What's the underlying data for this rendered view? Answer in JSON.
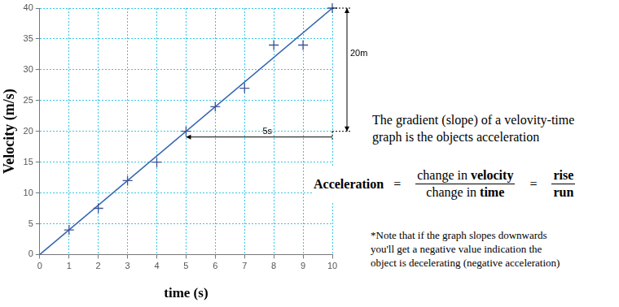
{
  "chart_data": {
    "type": "scatter",
    "x_label": "time (s)",
    "y_label": "Velocity (m/s)",
    "series": [
      {
        "type": "scatter",
        "marker": "cross",
        "color": "#3b5596",
        "x": [
          1,
          2,
          3,
          4,
          5,
          6,
          7,
          8,
          9,
          10
        ],
        "values": [
          4,
          7.5,
          12,
          15,
          20,
          24,
          27,
          34,
          34,
          40
        ]
      },
      {
        "type": "line",
        "color": "#3565b0",
        "x": [
          0,
          10
        ],
        "values": [
          0,
          40
        ]
      }
    ],
    "xlim": [
      0,
      10
    ],
    "xticks": [
      0,
      1,
      2,
      3,
      4,
      5,
      6,
      7,
      8,
      9,
      10
    ],
    "ylim": [
      0,
      40
    ],
    "yticks": [
      0,
      5,
      10,
      15,
      20,
      25,
      30,
      35,
      40
    ],
    "grid": true,
    "annotations": [
      {
        "text": "20m",
        "from": [
          10,
          20
        ],
        "to": [
          10,
          40
        ]
      },
      {
        "text": "5s",
        "from": [
          5,
          20
        ],
        "to": [
          10,
          20
        ]
      }
    ]
  },
  "explanation": {
    "lines": [
      "The gradient (slope) of a velovity-time",
      "graph is the objects acceleration"
    ]
  },
  "formula": {
    "left": "Acceleration",
    "equals": "=",
    "numerator": [
      {
        "text": "change in "
      },
      {
        "text": "velocity",
        "bold": true
      }
    ],
    "denominator": [
      {
        "text": "change in "
      },
      {
        "text": "time",
        "bold": true
      }
    ],
    "rise": "rise",
    "run": "run"
  },
  "note": {
    "lines": [
      "*Note that if the graph slopes downwards",
      "you'll get a negative value indication the",
      "object is decelerating (negative acceleration)"
    ]
  }
}
